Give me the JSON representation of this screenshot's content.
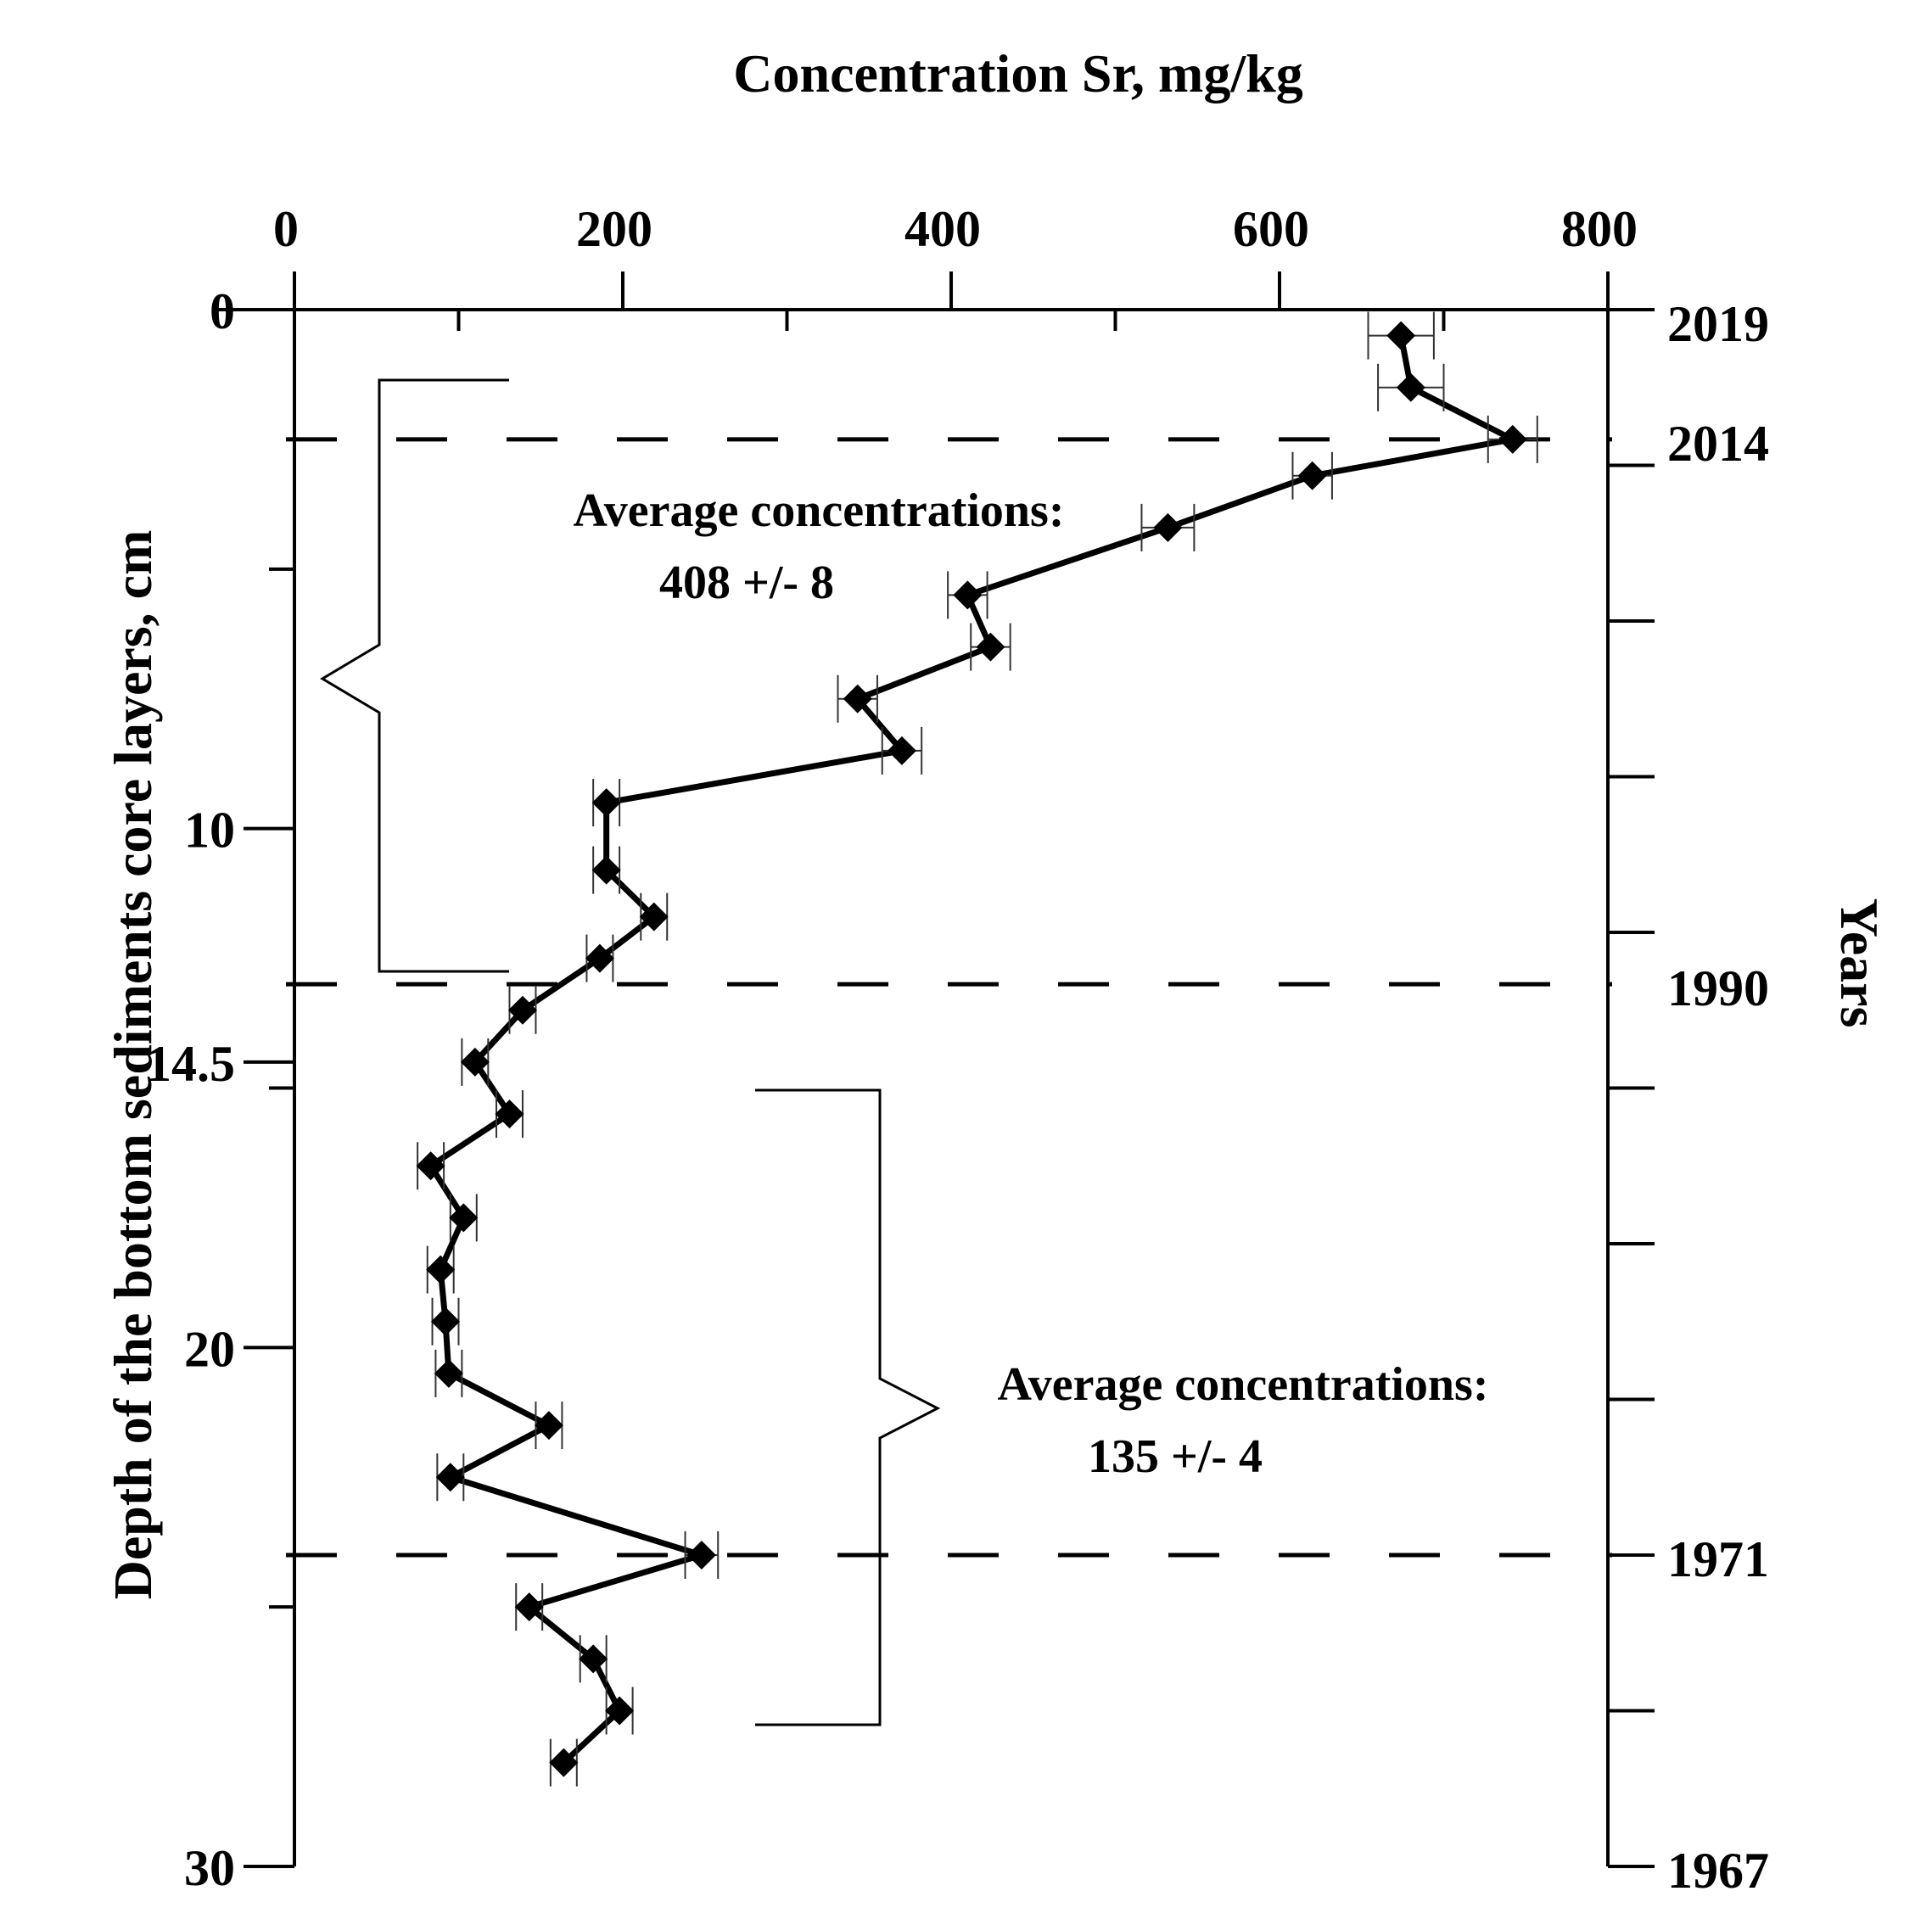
{
  "chart_data": {
    "type": "line",
    "title": "Concentration Sr, mg/kg",
    "ylabel": "Depth of the bottom sediments core layers, cm",
    "ylabel_right": "Years",
    "xlim": [
      0,
      800
    ],
    "ylim": [
      0,
      30
    ],
    "x_ticks": [
      0,
      200,
      400,
      600,
      800
    ],
    "x_tick_labels": [
      "0",
      "200",
      "400",
      "600",
      "800"
    ],
    "x_minor_ticks": [
      100,
      300,
      500,
      700
    ],
    "y_ticks": [
      0,
      10,
      14.5,
      20,
      30
    ],
    "y_tick_labels": [
      "0",
      "10",
      "14.5",
      "20",
      "30"
    ],
    "y_minor_ticks": [
      5,
      15,
      25
    ],
    "right_axis_ticks": [
      0,
      3,
      6,
      9,
      12,
      15,
      18,
      21,
      24,
      27,
      30
    ],
    "year_labels": [
      {
        "depth": 0.2,
        "label": "2019"
      },
      {
        "depth": 2.5,
        "label": "2014"
      },
      {
        "depth": 13.0,
        "label": "1990"
      },
      {
        "depth": 24.0,
        "label": "1971"
      },
      {
        "depth": 30.0,
        "label": "1967"
      }
    ],
    "dashed_lines_depth": [
      2.5,
      13.0,
      24.0
    ],
    "series": [
      {
        "name": "Sr",
        "x": [
          674,
          680,
          742,
          620,
          532,
          410,
          424,
          343,
          370,
          190,
          190,
          219,
          186,
          139,
          110,
          131,
          83,
          103,
          89,
          92,
          94,
          155,
          95,
          248,
          143,
          182,
          198,
          164
        ],
        "y": [
          0.5,
          1.5,
          2.5,
          3.2,
          4.2,
          5.5,
          6.5,
          7.5,
          8.5,
          9.5,
          10.8,
          11.7,
          12.5,
          13.5,
          14.5,
          15.5,
          16.5,
          17.5,
          18.5,
          19.5,
          20.5,
          21.5,
          22.5,
          24.0,
          25.0,
          26.0,
          27.0,
          28.0
        ],
        "x_error": [
          20,
          20,
          15,
          12,
          16,
          12,
          12,
          12,
          12,
          8,
          8,
          8,
          8,
          8,
          8,
          8,
          8,
          8,
          8,
          8,
          8,
          8,
          8,
          10,
          8,
          8,
          8,
          8
        ]
      }
    ],
    "annotations": [
      {
        "label": "Average concentrations:",
        "value": "408 +/- 8"
      },
      {
        "label": "Average concentrations:",
        "value": "135 +/- 4"
      }
    ]
  }
}
